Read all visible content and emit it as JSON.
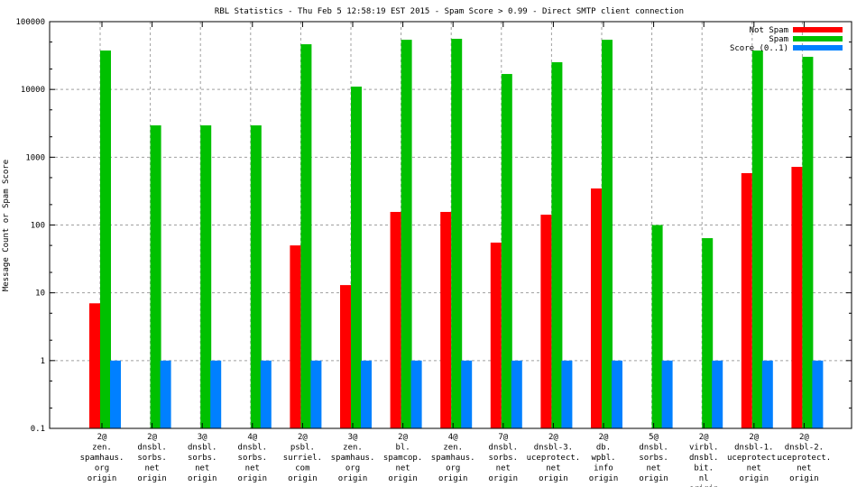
{
  "chart_data": {
    "type": "bar",
    "title": "RBL Statistics - Thu Feb  5 12:58:19 EST 2015 - Spam Score > 0.99 - Direct SMTP client connection",
    "xlabel": "",
    "ylabel": "Message Count or Spam Score",
    "yscale": "log",
    "ylim": [
      0.1,
      100000
    ],
    "yticks": [
      "0.1",
      "1",
      "10",
      "100",
      "1000",
      "10000",
      "100000"
    ],
    "ytick_values": [
      0.1,
      1,
      10,
      100,
      1000,
      10000,
      100000
    ],
    "grid": true,
    "legend_position": "top-right",
    "categories": [
      [
        "2@",
        "zen.",
        "spamhaus.",
        "org",
        "origin"
      ],
      [
        "2@",
        "dnsbl.",
        "sorbs.",
        "net",
        "origin"
      ],
      [
        "3@",
        "dnsbl.",
        "sorbs.",
        "net",
        "origin"
      ],
      [
        "4@",
        "dnsbl.",
        "sorbs.",
        "net",
        "origin"
      ],
      [
        "2@",
        "psbl.",
        "surriel.",
        "com",
        "origin"
      ],
      [
        "3@",
        "zen.",
        "spamhaus.",
        "org",
        "origin"
      ],
      [
        "2@",
        "bl.",
        "spamcop.",
        "net",
        "origin"
      ],
      [
        "4@",
        "zen.",
        "spamhaus.",
        "org",
        "origin"
      ],
      [
        "7@",
        "dnsbl.",
        "sorbs.",
        "net",
        "origin"
      ],
      [
        "2@",
        "dnsbl-3.",
        "uceprotect.",
        "net",
        "origin"
      ],
      [
        "2@",
        "db.",
        "wpbl.",
        "info",
        "origin"
      ],
      [
        "5@",
        "dnsbl.",
        "sorbs.",
        "net",
        "origin"
      ],
      [
        "2@",
        "virbl.",
        "dnsbl.",
        "bit.",
        "nl",
        "origin"
      ],
      [
        "2@",
        "dnsbl-1.",
        "uceprotect.",
        "net",
        "origin"
      ],
      [
        "2@",
        "dnsbl-2.",
        "uceprotect.",
        "net",
        "origin"
      ]
    ],
    "series": [
      {
        "name": "Not Spam",
        "color": "#ff0000",
        "values": [
          7,
          null,
          null,
          null,
          50,
          13,
          156,
          156,
          55,
          142,
          346,
          null,
          null,
          582,
          721
        ]
      },
      {
        "name": "Spam",
        "color": "#00c000",
        "values": [
          37500,
          2950,
          2950,
          2950,
          46400,
          11000,
          54000,
          55800,
          16900,
          25200,
          54000,
          100,
          64,
          37500,
          30300
        ]
      },
      {
        "name": "Score (0..1)",
        "color": "#0080ff",
        "values": [
          1,
          1,
          1,
          1,
          1,
          1,
          1,
          1,
          1,
          1,
          1,
          1,
          1,
          1,
          1
        ]
      }
    ]
  }
}
